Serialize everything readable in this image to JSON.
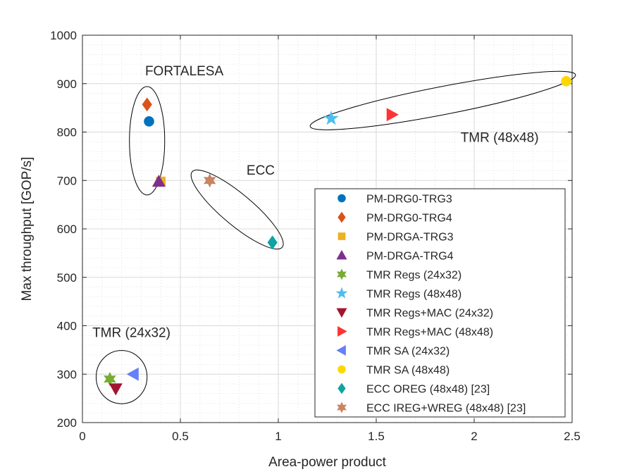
{
  "chart_data": {
    "type": "scatter",
    "title": "",
    "xlabel": "Area-power product",
    "ylabel": "Max throughput [GOP/s]",
    "xlim": [
      0,
      2.5
    ],
    "ylim": [
      200,
      1000
    ],
    "xticks": [
      0,
      0.5,
      1,
      1.5,
      2,
      2.5
    ],
    "xtick_labels": [
      "0",
      "0.5",
      "1",
      "1.5",
      "2",
      "2.5"
    ],
    "yticks": [
      200,
      300,
      400,
      500,
      600,
      700,
      800,
      900,
      1000
    ],
    "ytick_labels": [
      "200",
      "300",
      "400",
      "500",
      "600",
      "700",
      "800",
      "900",
      "1000"
    ],
    "grid": true,
    "minor_grid": true,
    "legend_position": "lower-right",
    "series": [
      {
        "name": "PM-DRG0-TRG3",
        "marker": "circle",
        "color": "#0072BD",
        "x": [
          0.34
        ],
        "y": [
          822
        ]
      },
      {
        "name": "PM-DRG0-TRG4",
        "marker": "diamond",
        "color": "#D95319",
        "x": [
          0.33
        ],
        "y": [
          857
        ]
      },
      {
        "name": "PM-DRGA-TRG3",
        "marker": "square",
        "color": "#EDB120",
        "x": [
          0.4
        ],
        "y": [
          698
        ]
      },
      {
        "name": "PM-DRGA-TRG4",
        "marker": "triangle-up",
        "color": "#7E2F8E",
        "x": [
          0.39
        ],
        "y": [
          698
        ]
      },
      {
        "name": "TMR Regs (24x32)",
        "marker": "hexagram",
        "color": "#77AC30",
        "x": [
          0.14
        ],
        "y": [
          290
        ]
      },
      {
        "name": "TMR Regs (48x48)",
        "marker": "pentagram",
        "color": "#4DBEEE",
        "x": [
          1.27
        ],
        "y": [
          828
        ]
      },
      {
        "name": "TMR Regs+MAC (24x32)",
        "marker": "triangle-down",
        "color": "#A2142F",
        "x": [
          0.17
        ],
        "y": [
          270
        ]
      },
      {
        "name": "TMR Regs+MAC (48x48)",
        "marker": "triangle-right",
        "color": "#FF3333",
        "x": [
          1.58
        ],
        "y": [
          836
        ]
      },
      {
        "name": "TMR SA (24x32)",
        "marker": "triangle-left",
        "color": "#6680F5",
        "x": [
          0.26
        ],
        "y": [
          300
        ]
      },
      {
        "name": "TMR SA (48x48)",
        "marker": "circle",
        "color": "#FFD700",
        "x": [
          2.47
        ],
        "y": [
          905
        ]
      },
      {
        "name": "ECC OREG (48x48) [23]",
        "marker": "diamond",
        "color": "#0FA3A3",
        "x": [
          0.97
        ],
        "y": [
          572
        ]
      },
      {
        "name": "ECC IREG+WREG (48x48) [23]",
        "marker": "hexagram",
        "color": "#C98463",
        "x": [
          0.65
        ],
        "y": [
          700
        ]
      }
    ],
    "annotations": [
      {
        "label": "FORTALESA",
        "cx": 0.33,
        "cy": 782,
        "rx": 0.09,
        "ry": 112,
        "angle": 0,
        "label_x": 0.52,
        "label_y": 917
      },
      {
        "label": "ECC",
        "cx": 0.79,
        "cy": 640,
        "rx": 0.3,
        "ry": 32,
        "angle": 40,
        "label_x": 0.91,
        "label_y": 712
      },
      {
        "label": "TMR (48x48)",
        "cx": 1.84,
        "cy": 865,
        "rx": 0.69,
        "ry": 29,
        "angle": -11,
        "label_x": 2.13,
        "label_y": 780
      },
      {
        "label": "TMR (24x32)",
        "cx": 0.2,
        "cy": 294,
        "rx": 0.13,
        "ry": 55,
        "angle": 0,
        "label_x": 0.25,
        "label_y": 377
      }
    ]
  }
}
